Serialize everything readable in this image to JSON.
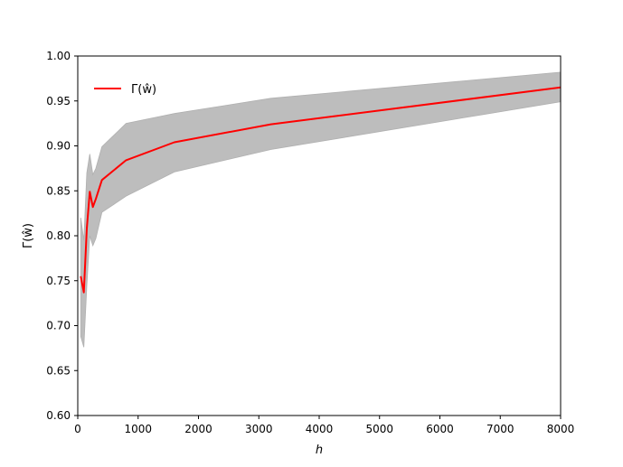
{
  "chart_data": {
    "type": "line",
    "xlabel": "h",
    "ylabel": "Γ(ŵ)",
    "xlim": [
      0,
      8000
    ],
    "ylim": [
      0.6,
      1.0
    ],
    "xticks": [
      "0",
      "1000",
      "2000",
      "3000",
      "4000",
      "5000",
      "6000",
      "7000",
      "8000"
    ],
    "yticks": [
      "0.60",
      "0.65",
      "0.70",
      "0.75",
      "0.80",
      "0.85",
      "0.90",
      "0.95",
      "1.00"
    ],
    "grid": false,
    "legend_position": "top-left",
    "series": [
      {
        "name": "Γ(ŵ)",
        "color": "#ff0000",
        "x": [
          50,
          100,
          150,
          200,
          250,
          300,
          400,
          800,
          1600,
          3200,
          8000
        ],
        "y": [
          0.755,
          0.737,
          0.808,
          0.849,
          0.832,
          0.841,
          0.862,
          0.884,
          0.904,
          0.924,
          0.965
        ]
      }
    ],
    "band": {
      "color": "#bdbdbd",
      "x": [
        50,
        100,
        150,
        200,
        250,
        300,
        400,
        800,
        1600,
        3200,
        8000
      ],
      "upper": [
        0.82,
        0.795,
        0.87,
        0.891,
        0.868,
        0.875,
        0.899,
        0.925,
        0.936,
        0.953,
        0.982
      ],
      "lower": [
        0.688,
        0.676,
        0.744,
        0.8,
        0.789,
        0.797,
        0.826,
        0.844,
        0.871,
        0.896,
        0.949
      ]
    }
  }
}
